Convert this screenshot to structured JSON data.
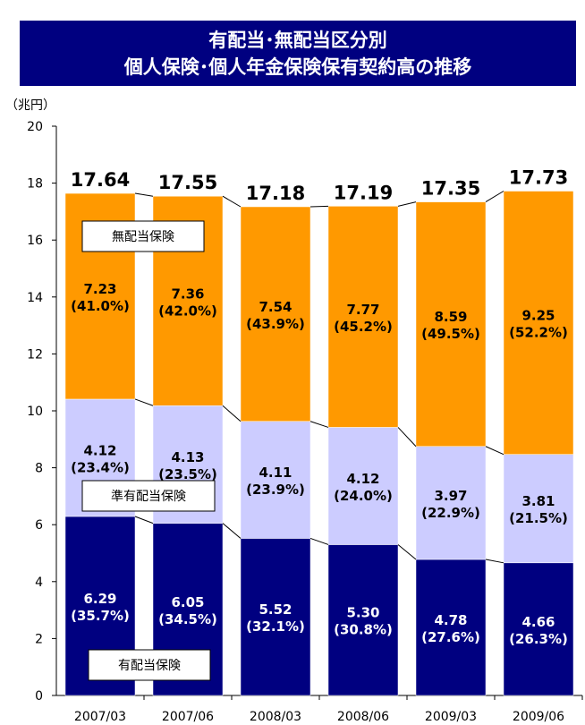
{
  "title": {
    "line1": "有配当･無配当区分別",
    "line2": "個人保険･個人年金保険保有契約高の推移"
  },
  "chart_data": {
    "type": "bar",
    "stacked": true,
    "unit_label": "（兆円）",
    "categories": [
      "2007/03",
      "2007/06",
      "2008/03",
      "2008/06",
      "2009/03",
      "2009/06"
    ],
    "ylim": [
      0,
      20
    ],
    "yticks": [
      0,
      2,
      4,
      6,
      8,
      10,
      12,
      14,
      16,
      18,
      20
    ],
    "grid": false,
    "totals": [
      "17.64",
      "17.55",
      "17.18",
      "17.19",
      "17.35",
      "17.73"
    ],
    "series": [
      {
        "name": "有配当保険",
        "color": "#000080",
        "label_color": "#ffffff",
        "values": [
          6.29,
          6.05,
          5.52,
          5.3,
          4.78,
          4.66
        ],
        "labels": [
          "6.29",
          "6.05",
          "5.52",
          "5.30",
          "4.78",
          "4.66"
        ],
        "percents": [
          "(35.7%)",
          "(34.5%)",
          "(32.1%)",
          "(30.8%)",
          "(27.6%)",
          "(26.3%)"
        ]
      },
      {
        "name": "準有配当保険",
        "color": "#ccccff",
        "label_color": "#000000",
        "values": [
          4.12,
          4.13,
          4.11,
          4.12,
          3.97,
          3.81
        ],
        "labels": [
          "4.12",
          "4.13",
          "4.11",
          "4.12",
          "3.97",
          "3.81"
        ],
        "percents": [
          "(23.4%)",
          "(23.5%)",
          "(23.9%)",
          "(24.0%)",
          "(22.9%)",
          "(21.5%)"
        ]
      },
      {
        "name": "無配当保険",
        "color": "#ff9900",
        "label_color": "#000000",
        "values": [
          7.23,
          7.36,
          7.54,
          7.77,
          8.59,
          9.25
        ],
        "labels": [
          "7.23",
          "7.36",
          "7.54",
          "7.77",
          "8.59",
          "9.25"
        ],
        "percents": [
          "(41.0%)",
          "(42.0%)",
          "(43.9%)",
          "(45.2%)",
          "(49.5%)",
          "(52.2%)"
        ]
      }
    ]
  }
}
